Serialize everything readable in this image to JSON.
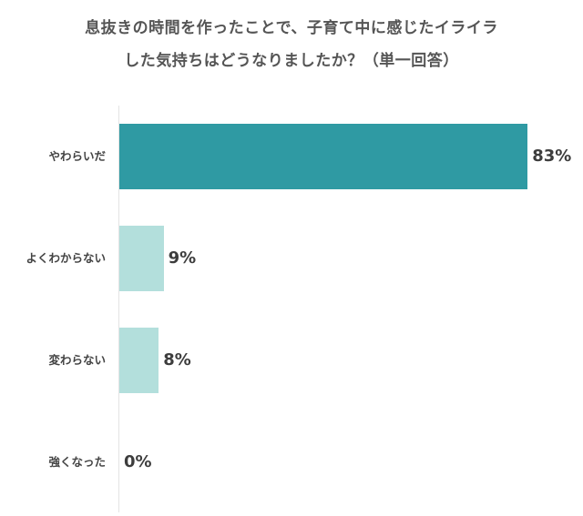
{
  "title": {
    "line1": "息抜きの時間を作ったことで、子育て中に感じたイライラ",
    "line2": "した気持ちはどうなりましたか？（単一回答）"
  },
  "colors": {
    "primary": "#2f9aa3",
    "secondary": "#b3dfdc",
    "axis": "#e4e4e4"
  },
  "chart_data": {
    "type": "bar",
    "orientation": "horizontal",
    "title": "息抜きの時間を作ったことで、子育て中に感じたイライラした気持ちはどうなりましたか？（単一回答）",
    "categories": [
      "やわらいだ",
      "よくわからない",
      "変わらない",
      "強くなった"
    ],
    "values": [
      83,
      9,
      8,
      0
    ],
    "labels": [
      "83%",
      "9%",
      "8%",
      "0%"
    ],
    "unit": "%",
    "xlabel": "",
    "ylabel": "",
    "xlim": [
      0,
      100
    ],
    "grid": false,
    "legend": null,
    "bar_colors": [
      "#2f9aa3",
      "#b3dfdc",
      "#b3dfdc",
      "#b3dfdc"
    ]
  }
}
